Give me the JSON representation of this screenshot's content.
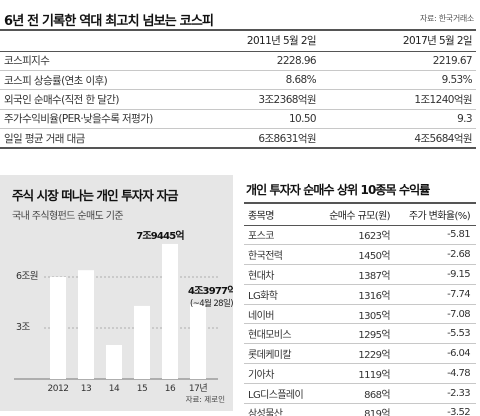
{
  "top": {
    "title": "6년 전 기록한 역대 최고치 넘보는 코스피",
    "source": "자료: 한국거래소",
    "col1": "2011년 5월 2일",
    "col2": "2017년 5월 2일",
    "rows": [
      {
        "label": "코스피지수",
        "v1": "2228.96",
        "v2": "2219.67"
      },
      {
        "label": "코스피 상승률(연초 이후)",
        "v1": "8.68%",
        "v2": "9.53%"
      },
      {
        "label": "외국인 순매수(직전 한 달간)",
        "v1": "3조2368억원",
        "v2": "1조1240억원"
      },
      {
        "label": "주가수익비율(PER·낮을수록 저평가)",
        "v1": "10.50",
        "v2": "9.3"
      },
      {
        "label": "일일 평균 거래 대금",
        "v1": "6조8631억원",
        "v2": "4조5684억원"
      }
    ]
  },
  "chart": {
    "title": "주식 시장 떠나는 개인 투자자 자금",
    "subtitle": "국내 주식형펀드 순매도 기준",
    "source": "자료: 제로인",
    "bar_color": "#ffffff",
    "grid_color": "#9a9a9a"
  },
  "chart_data": {
    "type": "bar",
    "title": "주식 시장 떠나는 개인 투자자 자금",
    "subtitle": "국내 주식형펀드 순매도 기준",
    "categories": [
      "2012",
      "13",
      "14",
      "15",
      "16",
      "17년"
    ],
    "values": [
      6.0,
      6.4,
      2.0,
      4.3,
      7.9445,
      4.3977
    ],
    "yticks": [
      {
        "value": 6,
        "label": "6조원"
      },
      {
        "value": 3,
        "label": "3조"
      },
      {
        "value": 0,
        "label": "0"
      }
    ],
    "ylim": [
      0,
      9
    ],
    "annotations": [
      {
        "index": 4,
        "text": "7조9445억"
      },
      {
        "index": 5,
        "text": "4조3977억원"
      },
      {
        "index": 5,
        "text": "(~4월 28일)"
      }
    ],
    "grid": true
  },
  "rank": {
    "title": "개인 투자자 순매수 상위 10종목 수익률",
    "headers": [
      "종목명",
      "순매수 규모(원)",
      "주가 변화율(%)"
    ],
    "rows": [
      {
        "name": "포스코",
        "buy": "1623억",
        "chg": "-5.81"
      },
      {
        "name": "한국전력",
        "buy": "1450억",
        "chg": "-2.68"
      },
      {
        "name": "현대차",
        "buy": "1387억",
        "chg": "-9.15"
      },
      {
        "name": "LG화학",
        "buy": "1316억",
        "chg": "-7.74"
      },
      {
        "name": "네이버",
        "buy": "1305억",
        "chg": "-7.08"
      },
      {
        "name": "현대모비스",
        "buy": "1295억",
        "chg": "-5.53"
      },
      {
        "name": "롯데케미칼",
        "buy": "1229억",
        "chg": "-6.04"
      },
      {
        "name": "기아차",
        "buy": "1119억",
        "chg": "-4.78"
      },
      {
        "name": "LG디스플레이",
        "buy": "868억",
        "chg": "-2.33"
      },
      {
        "name": "삼성물산",
        "buy": "819억",
        "chg": "-3.52"
      }
    ]
  }
}
